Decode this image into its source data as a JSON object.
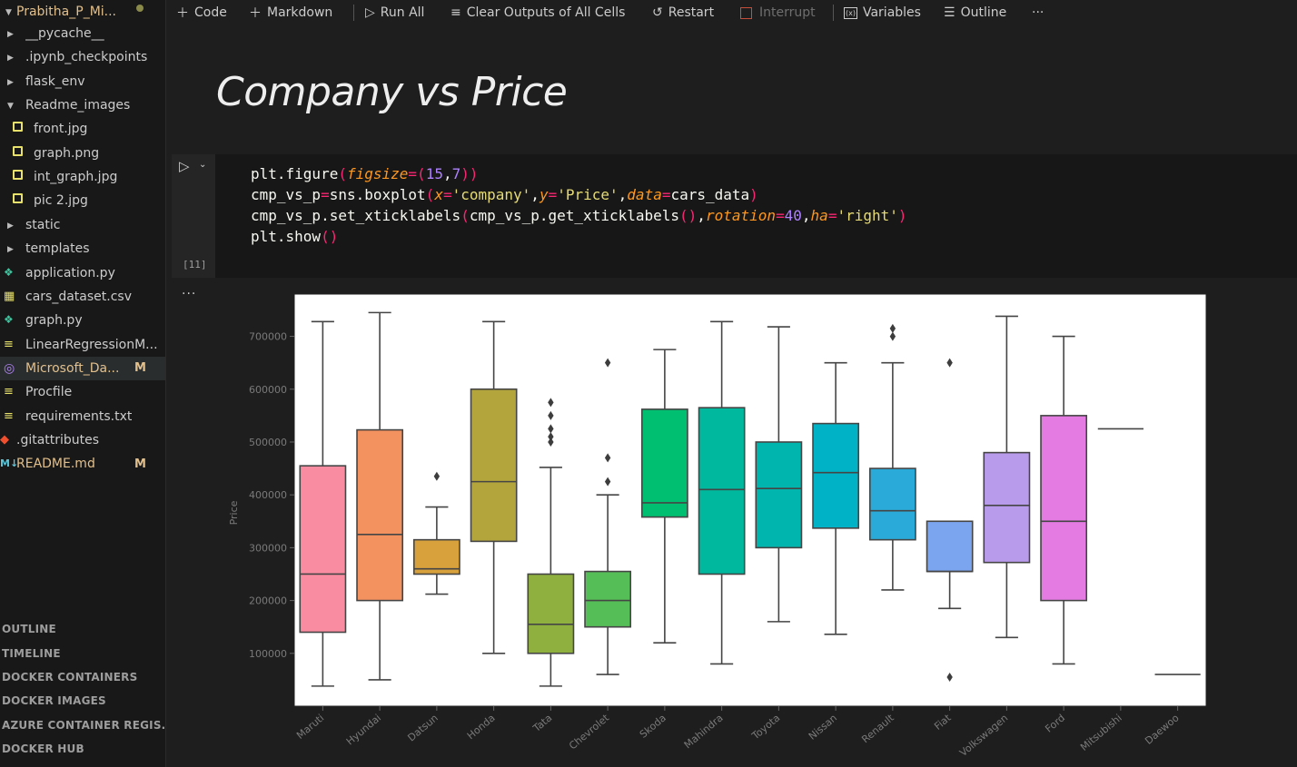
{
  "sidebar": {
    "workspace": "Prabitha_P_Mi...",
    "items": [
      {
        "label": "__pycache__",
        "kind": "folder",
        "expanded": false
      },
      {
        "label": ".ipynb_checkpoints",
        "kind": "folder",
        "expanded": false
      },
      {
        "label": "flask_env",
        "kind": "folder",
        "expanded": false
      },
      {
        "label": "Readme_images",
        "kind": "folder",
        "expanded": true
      },
      {
        "label": "front.jpg",
        "kind": "image"
      },
      {
        "label": "graph.png",
        "kind": "image"
      },
      {
        "label": "int_graph.jpg",
        "kind": "image"
      },
      {
        "label": "pic 2.jpg",
        "kind": "image"
      },
      {
        "label": "static",
        "kind": "folder",
        "expanded": false
      },
      {
        "label": "templates",
        "kind": "folder",
        "expanded": false
      },
      {
        "label": "application.py",
        "kind": "python"
      },
      {
        "label": "cars_dataset.csv",
        "kind": "csv"
      },
      {
        "label": "graph.py",
        "kind": "python"
      },
      {
        "label": "LinearRegressionM...",
        "kind": "text"
      },
      {
        "label": "Microsoft_Da...",
        "kind": "notebook",
        "badge": "M"
      },
      {
        "label": "Procfile",
        "kind": "text"
      },
      {
        "label": "requirements.txt",
        "kind": "text"
      },
      {
        "label": ".gitattributes",
        "kind": "git"
      },
      {
        "label": "README.md",
        "kind": "markdown",
        "badge": "M"
      }
    ],
    "panes": [
      "OUTLINE",
      "TIMELINE",
      "DOCKER CONTAINERS",
      "DOCKER IMAGES",
      "AZURE CONTAINER REGIS...",
      "DOCKER HUB"
    ]
  },
  "toolbar": {
    "code": "Code",
    "markdown": "Markdown",
    "run_all": "Run All",
    "clear_outputs": "Clear Outputs of All Cells",
    "restart": "Restart",
    "interrupt": "Interrupt",
    "variables": "Variables",
    "outline": "Outline",
    "more": "···"
  },
  "markdown_cell": {
    "heading": "Company vs Price"
  },
  "code_cell": {
    "execution_count": "[11]",
    "lines": [
      "plt.figure(figsize=(15,7))",
      "cmp_vs_p=sns.boxplot(x='company',y='Price',data=cars_data)",
      "cmp_vs_p.set_xticklabels(cmp_vs_p.get_xticklabels(),rotation=40,ha='right')",
      "plt.show()"
    ]
  },
  "output": {
    "more": "···"
  },
  "chart_data": {
    "type": "boxplot",
    "title": "",
    "xlabel": "",
    "ylabel": "Price",
    "ylim": [
      0,
      780000
    ],
    "yticks": [
      100000,
      200000,
      300000,
      400000,
      500000,
      600000,
      700000
    ],
    "ytick_labels": [
      "100000",
      "200000",
      "300000",
      "400000",
      "500000",
      "600000",
      "700000"
    ],
    "grid": false,
    "categories": [
      "Maruti",
      "Hyundai",
      "Datsun",
      "Honda",
      "Tata",
      "Chevrolet",
      "Skoda",
      "Mahindra",
      "Toyota",
      "Nissan",
      "Renault",
      "Fiat",
      "Volkswagen",
      "Ford",
      "Mitsubishi",
      "Daewoo"
    ],
    "boxes": [
      {
        "whisker_low": 38000,
        "q1": 140000,
        "median": 250000,
        "q3": 455000,
        "whisker_high": 728000,
        "outliers": [],
        "color": "#f98ca1"
      },
      {
        "whisker_low": 50000,
        "q1": 200000,
        "median": 325000,
        "q3": 523000,
        "whisker_high": 745000,
        "outliers": [],
        "color": "#f3915f"
      },
      {
        "whisker_low": 212000,
        "q1": 250000,
        "median": 260000,
        "q3": 315000,
        "whisker_high": 377000,
        "outliers": [
          435000
        ],
        "color": "#d8a13c"
      },
      {
        "whisker_low": 100000,
        "q1": 312000,
        "median": 425000,
        "q3": 600000,
        "whisker_high": 728000,
        "outliers": [],
        "color": "#b3a43c"
      },
      {
        "whisker_low": 38000,
        "q1": 100000,
        "median": 155000,
        "q3": 250000,
        "whisker_high": 452000,
        "outliers": [
          500000,
          510000,
          525000,
          550000,
          575000
        ],
        "color": "#8faf3e"
      },
      {
        "whisker_low": 60000,
        "q1": 150000,
        "median": 200000,
        "q3": 255000,
        "whisker_high": 400000,
        "outliers": [
          425000,
          470000,
          650000
        ],
        "color": "#56be57"
      },
      {
        "whisker_low": 120000,
        "q1": 358000,
        "median": 385000,
        "q3": 562000,
        "whisker_high": 675000,
        "outliers": [],
        "color": "#00bf71"
      },
      {
        "whisker_low": 80000,
        "q1": 250000,
        "median": 410000,
        "q3": 565000,
        "whisker_high": 728000,
        "outliers": [],
        "color": "#00b89e"
      },
      {
        "whisker_low": 160000,
        "q1": 300000,
        "median": 412000,
        "q3": 500000,
        "whisker_high": 718000,
        "outliers": [],
        "color": "#00b5ad"
      },
      {
        "whisker_low": 136000,
        "q1": 337000,
        "median": 442000,
        "q3": 535000,
        "whisker_high": 650000,
        "outliers": [],
        "color": "#00b2c5"
      },
      {
        "whisker_low": 220000,
        "q1": 315000,
        "median": 370000,
        "q3": 450000,
        "whisker_high": 650000,
        "outliers": [
          700000,
          715000
        ],
        "color": "#2aaad8"
      },
      {
        "whisker_low": 185000,
        "q1": 255000,
        "median": 255000,
        "q3": 350000,
        "whisker_high": 350000,
        "outliers": [
          55000,
          650000
        ],
        "color": "#7ca5ef"
      },
      {
        "whisker_low": 130000,
        "q1": 272000,
        "median": 380000,
        "q3": 480000,
        "whisker_high": 738000,
        "outliers": [],
        "color": "#b99bec"
      },
      {
        "whisker_low": 80000,
        "q1": 200000,
        "median": 350000,
        "q3": 550000,
        "whisker_high": 700000,
        "outliers": [],
        "color": "#e37be3"
      },
      {
        "whisker_low": 525000,
        "q1": 525000,
        "median": 525000,
        "q3": 525000,
        "whisker_high": 525000,
        "outliers": [],
        "color": "#f276c7"
      },
      {
        "whisker_low": 60000,
        "q1": 60000,
        "median": 60000,
        "q3": 60000,
        "whisker_high": 60000,
        "outliers": [],
        "color": "#f775a6"
      }
    ]
  }
}
